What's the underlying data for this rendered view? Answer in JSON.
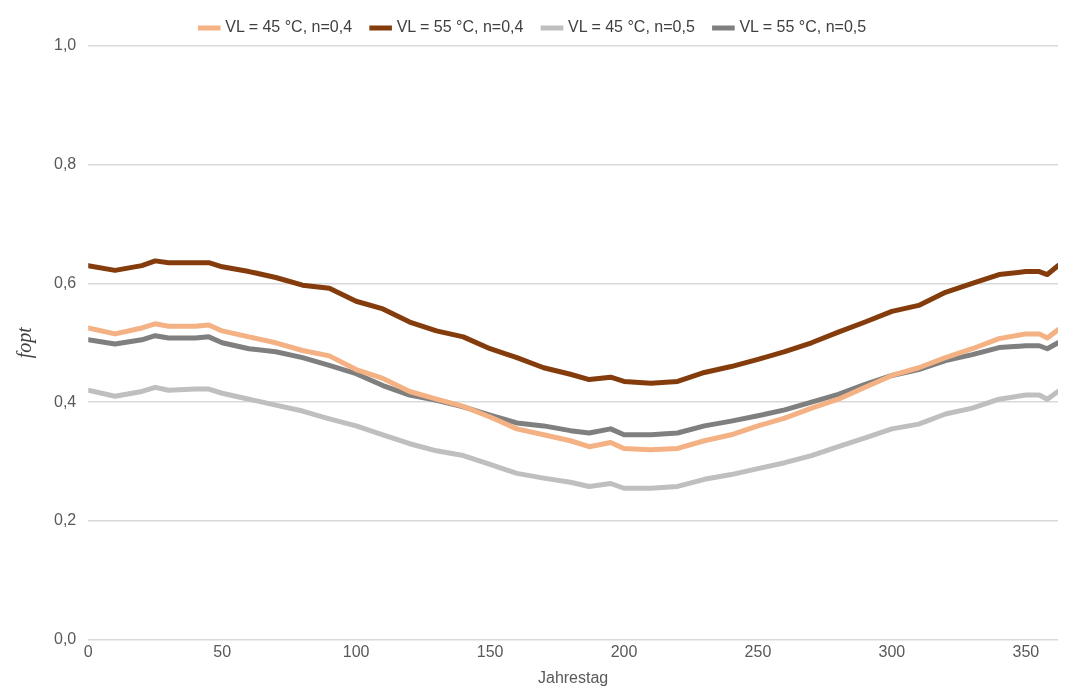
{
  "chart_data": {
    "type": "line",
    "xlabel": "Jahrestag",
    "ylabel": "fopt",
    "x": [
      0,
      10,
      20,
      25,
      30,
      40,
      45,
      50,
      60,
      70,
      80,
      90,
      100,
      110,
      120,
      130,
      140,
      150,
      160,
      170,
      180,
      187,
      195,
      200,
      210,
      220,
      230,
      240,
      250,
      260,
      270,
      280,
      290,
      300,
      310,
      320,
      330,
      340,
      350,
      355,
      358,
      362
    ],
    "series": [
      {
        "name": "VL = 45 °C, n=0,4",
        "color": "#f4b183",
        "values": [
          0.525,
          0.515,
          0.525,
          0.532,
          0.528,
          0.528,
          0.53,
          0.52,
          0.51,
          0.5,
          0.487,
          0.478,
          0.455,
          0.44,
          0.418,
          0.405,
          0.393,
          0.375,
          0.355,
          0.345,
          0.335,
          0.325,
          0.332,
          0.322,
          0.32,
          0.322,
          0.335,
          0.345,
          0.36,
          0.373,
          0.39,
          0.405,
          0.425,
          0.445,
          0.458,
          0.475,
          0.49,
          0.507,
          0.515,
          0.515,
          0.508,
          0.522
        ]
      },
      {
        "name": "VL = 55 °C, n=0,4",
        "color": "#843c0c",
        "values": [
          0.63,
          0.622,
          0.63,
          0.638,
          0.635,
          0.635,
          0.635,
          0.628,
          0.62,
          0.61,
          0.597,
          0.592,
          0.57,
          0.557,
          0.535,
          0.52,
          0.51,
          0.49,
          0.475,
          0.458,
          0.447,
          0.438,
          0.442,
          0.435,
          0.432,
          0.435,
          0.45,
          0.46,
          0.472,
          0.485,
          0.5,
          0.518,
          0.535,
          0.553,
          0.563,
          0.585,
          0.6,
          0.615,
          0.62,
          0.62,
          0.615,
          0.63
        ]
      },
      {
        "name": "VL = 45 °C, n=0,5",
        "color": "#bfbfbf",
        "values": [
          0.42,
          0.41,
          0.418,
          0.425,
          0.42,
          0.422,
          0.422,
          0.415,
          0.405,
          0.395,
          0.385,
          0.372,
          0.36,
          0.345,
          0.33,
          0.318,
          0.31,
          0.295,
          0.28,
          0.272,
          0.265,
          0.258,
          0.263,
          0.255,
          0.255,
          0.258,
          0.27,
          0.278,
          0.288,
          0.298,
          0.31,
          0.325,
          0.34,
          0.355,
          0.363,
          0.38,
          0.39,
          0.405,
          0.412,
          0.412,
          0.405,
          0.418
        ]
      },
      {
        "name": "VL = 55 °C, n=0,5",
        "color": "#7f7f7f",
        "values": [
          0.505,
          0.498,
          0.505,
          0.512,
          0.508,
          0.508,
          0.51,
          0.5,
          0.49,
          0.485,
          0.475,
          0.462,
          0.448,
          0.428,
          0.412,
          0.403,
          0.392,
          0.378,
          0.365,
          0.36,
          0.352,
          0.348,
          0.355,
          0.345,
          0.345,
          0.348,
          0.36,
          0.368,
          0.377,
          0.387,
          0.4,
          0.413,
          0.43,
          0.445,
          0.455,
          0.47,
          0.48,
          0.492,
          0.495,
          0.495,
          0.49,
          0.5
        ]
      }
    ],
    "xlim": [
      0,
      362
    ],
    "xticks": [
      0,
      50,
      100,
      150,
      200,
      250,
      300,
      350
    ],
    "ylim": [
      0,
      1
    ],
    "yticks": [
      {
        "value": 0,
        "label": "0,0"
      },
      {
        "value": 0.2,
        "label": "0,2"
      },
      {
        "value": 0.4,
        "label": "0,4"
      },
      {
        "value": 0.6,
        "label": "0,6"
      },
      {
        "value": 0.8,
        "label": "0,8"
      },
      {
        "value": 1,
        "label": "1,0"
      }
    ],
    "grid": "y",
    "legend": "top",
    "marker": "none",
    "line_style": "solid"
  }
}
